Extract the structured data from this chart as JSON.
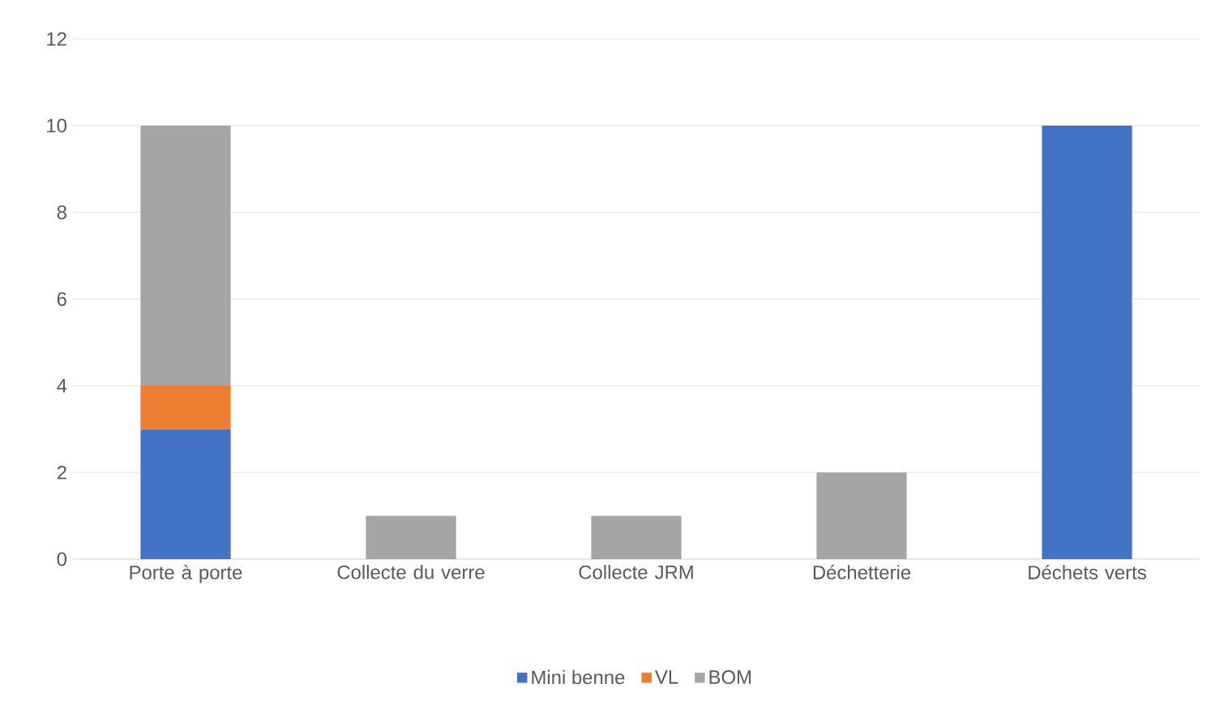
{
  "chart_data": {
    "type": "bar",
    "stacked": true,
    "categories": [
      "Porte à porte",
      "Collecte du verre",
      "Collecte JRM",
      "Déchetterie",
      "Déchets verts"
    ],
    "series": [
      {
        "name": "Mini benne",
        "color": "#4472c4",
        "values": [
          3,
          null,
          null,
          null,
          10
        ]
      },
      {
        "name": "VL",
        "color": "#ed7d31",
        "values": [
          1,
          null,
          null,
          null,
          null
        ]
      },
      {
        "name": "BOM",
        "color": "#a5a5a5",
        "values": [
          6,
          1,
          1,
          2,
          null
        ]
      }
    ],
    "ylim": [
      0,
      12
    ],
    "yticks": [
      0,
      2,
      4,
      6,
      8,
      10,
      12
    ],
    "grid": "y",
    "legend": "bottom"
  }
}
